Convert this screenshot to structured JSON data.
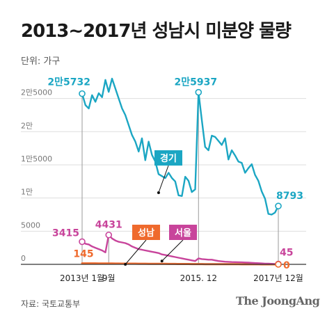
{
  "title": "2013~2017년 성남시 미분양 물량",
  "unit_label": "단위: 가구",
  "source": "자료: 국토교통부",
  "brand": "The JoongAng",
  "colors": {
    "gyeonggi": "#1ba6c3",
    "seoul": "#c8449b",
    "seongnam": "#ef6a2d",
    "grid": "#dedede",
    "axis": "#333333"
  },
  "chart_data": {
    "type": "line",
    "title": "2013~2017년 성남시 미분양 물량",
    "ylabel": "단위: 가구",
    "ylim": [
      0,
      28000
    ],
    "yticks": [
      0,
      5000,
      10000,
      15000,
      20000,
      25000
    ],
    "ytick_labels": [
      "0",
      "5000",
      "1만",
      "1만5000",
      "2만",
      "2만5000"
    ],
    "x_unit": "month index (1 = 2013년 1월 ... 60 = 2017년 12월)",
    "xlim": [
      1,
      60
    ],
    "xticks": [
      {
        "x": 1,
        "label": "2013년 1월"
      },
      {
        "x": 9,
        "label": "9월"
      },
      {
        "x": 36,
        "label": "2015. 12"
      },
      {
        "x": 60,
        "label": "2017년 12월"
      }
    ],
    "grid": true,
    "series": [
      {
        "name": "경기",
        "color": "#1ba6c3",
        "values": [
          25732,
          24000,
          23500,
          25500,
          24500,
          25800,
          25200,
          27800,
          26000,
          28000,
          26500,
          25000,
          23500,
          22500,
          21000,
          19500,
          18500,
          17000,
          19000,
          15700,
          18500,
          16500,
          15500,
          13600,
          13300,
          13000,
          13800,
          13000,
          12500,
          10400,
          10300,
          13200,
          12600,
          10900,
          11300,
          25937,
          21700,
          17700,
          17200,
          19400,
          19200,
          18600,
          18000,
          19000,
          15800,
          17200,
          16400,
          15500,
          15300,
          13800,
          14500,
          15100,
          13500,
          12600,
          11000,
          9900,
          7600,
          7500,
          7800,
          8793
        ]
      },
      {
        "name": "서울",
        "color": "#c8449b",
        "values": [
          3415,
          3100,
          3000,
          2700,
          2500,
          2300,
          2100,
          1800,
          4431,
          3900,
          3600,
          3400,
          3300,
          3200,
          3000,
          2700,
          2500,
          2300,
          2200,
          2100,
          2000,
          1900,
          1800,
          1700,
          1500,
          1400,
          1300,
          1200,
          1100,
          1000,
          900,
          800,
          700,
          600,
          500,
          900,
          800,
          750,
          700,
          700,
          600,
          500,
          450,
          400,
          380,
          350,
          340,
          330,
          300,
          280,
          260,
          230,
          200,
          180,
          150,
          120,
          100,
          80,
          60,
          45
        ]
      },
      {
        "name": "성남",
        "color": "#ef6a2d",
        "values": [
          145,
          145,
          145,
          145,
          145,
          140,
          140,
          135,
          130,
          130,
          120,
          120,
          110,
          110,
          100,
          100,
          100,
          90,
          90,
          90,
          80,
          80,
          80,
          70,
          70,
          70,
          60,
          60,
          60,
          50,
          50,
          50,
          50,
          40,
          40,
          40,
          40,
          30,
          30,
          30,
          30,
          30,
          20,
          20,
          20,
          20,
          20,
          20,
          10,
          10,
          10,
          10,
          10,
          10,
          5,
          5,
          5,
          0,
          0,
          0
        ]
      }
    ],
    "annotations": [
      {
        "text": "2만5732",
        "series": "경기",
        "x": 1,
        "y": 25732
      },
      {
        "text": "2만5937",
        "series": "경기",
        "x": 36,
        "y": 25937
      },
      {
        "text": "8793",
        "series": "경기",
        "x": 60,
        "y": 8793
      },
      {
        "text": "3415",
        "series": "서울",
        "x": 1,
        "y": 3415
      },
      {
        "text": "4431",
        "series": "서울",
        "x": 9,
        "y": 4431
      },
      {
        "text": "45",
        "series": "서울",
        "x": 60,
        "y": 45
      },
      {
        "text": "145",
        "series": "성남",
        "x": 1,
        "y": 145
      },
      {
        "text": "0",
        "series": "성남",
        "x": 60,
        "y": 0
      }
    ],
    "legend_labels": [
      {
        "text": "경기",
        "series": "경기",
        "x": 24,
        "y": 10800
      },
      {
        "text": "성남",
        "series": "성남",
        "x": 14,
        "y": 0
      },
      {
        "text": "서울",
        "series": "서울",
        "x": 25,
        "y": 500
      }
    ]
  }
}
